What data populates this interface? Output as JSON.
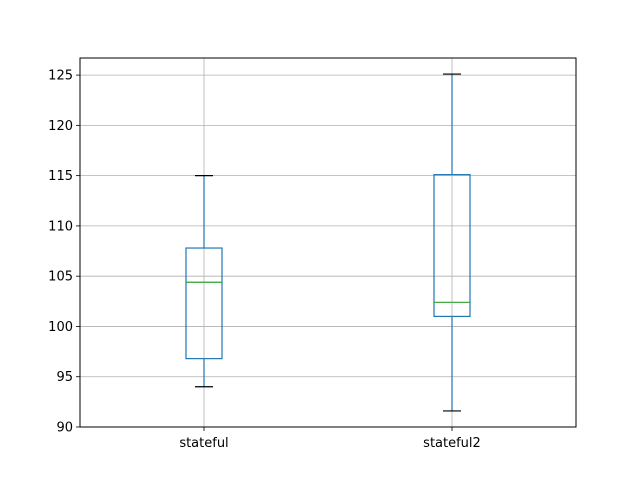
{
  "chart_data": {
    "type": "box",
    "title": "",
    "xlabel": "",
    "ylabel": "",
    "grid": true,
    "ylim": [
      90,
      126.7
    ],
    "yticks": [
      90,
      95,
      100,
      105,
      110,
      115,
      120,
      125
    ],
    "ytick_labels": [
      "90",
      "95",
      "100",
      "105",
      "110",
      "115",
      "120",
      "125"
    ],
    "categories": [
      "stateful",
      "stateful2"
    ],
    "boxes": [
      {
        "label": "stateful",
        "whisker_low": 94.0,
        "q1": 96.8,
        "median": 104.4,
        "q3": 107.8,
        "whisker_high": 115.0
      },
      {
        "label": "stateful2",
        "whisker_low": 91.6,
        "q1": 101.0,
        "median": 102.4,
        "q3": 115.1,
        "whisker_high": 125.1
      }
    ],
    "colors": {
      "box": "#1f77b4",
      "median": "#2ca02c",
      "cap": "#000000",
      "grid": "#b0b0b0",
      "axes": "#000000"
    }
  }
}
